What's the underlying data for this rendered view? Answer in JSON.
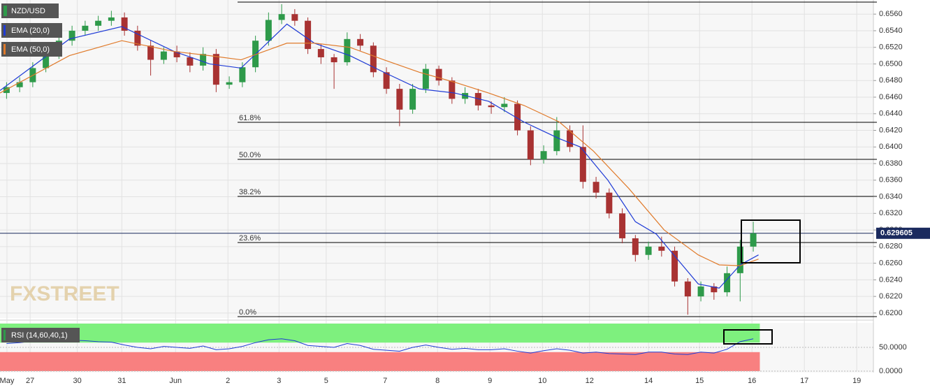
{
  "chart_data": [
    {
      "type": "candlestick",
      "title": "NZD/USD",
      "watermark": "FXSTREET",
      "up_color": "#2e9a4a",
      "down_color": "#a83232",
      "open": [
        0.6465,
        0.6472,
        0.6478,
        0.6495,
        0.6512,
        0.6528,
        0.654,
        0.6546,
        0.6552,
        0.6556,
        0.654,
        0.6522,
        0.6505,
        0.6515,
        0.6508,
        0.6498,
        0.6512,
        0.6475,
        0.6478,
        0.6496,
        0.6528,
        0.6553,
        0.656,
        0.6552,
        0.6518,
        0.6508,
        0.6502,
        0.653,
        0.6522,
        0.649,
        0.647,
        0.6445,
        0.647,
        0.6494,
        0.648,
        0.6458,
        0.6465,
        0.645,
        0.6448,
        0.6452,
        0.642,
        0.6385,
        0.6395,
        0.642,
        0.64,
        0.6358,
        0.6345,
        0.632,
        0.629,
        0.627,
        0.628,
        0.6275,
        0.6238,
        0.622,
        0.6232,
        0.6225,
        0.6248,
        0.628
      ],
      "high": [
        0.6478,
        0.6484,
        0.6502,
        0.6518,
        0.6534,
        0.6546,
        0.6552,
        0.6558,
        0.6564,
        0.6562,
        0.6546,
        0.6528,
        0.652,
        0.6522,
        0.6514,
        0.652,
        0.6518,
        0.6485,
        0.6502,
        0.6534,
        0.6562,
        0.6572,
        0.6566,
        0.6556,
        0.6524,
        0.6512,
        0.6538,
        0.6536,
        0.6526,
        0.6496,
        0.6476,
        0.6476,
        0.65,
        0.6498,
        0.6484,
        0.6472,
        0.647,
        0.6455,
        0.646,
        0.6456,
        0.6425,
        0.6402,
        0.6436,
        0.6426,
        0.6426,
        0.6364,
        0.635,
        0.6326,
        0.6294,
        0.6286,
        0.6292,
        0.628,
        0.6242,
        0.6238,
        0.6236,
        0.6256,
        0.6288,
        0.631
      ],
      "low": [
        0.6458,
        0.6466,
        0.6472,
        0.649,
        0.6506,
        0.6522,
        0.6534,
        0.654,
        0.6546,
        0.6534,
        0.6516,
        0.6486,
        0.65,
        0.6502,
        0.649,
        0.6492,
        0.6466,
        0.647,
        0.6472,
        0.649,
        0.6522,
        0.6548,
        0.6546,
        0.6512,
        0.65,
        0.647,
        0.6498,
        0.6516,
        0.6484,
        0.6464,
        0.6425,
        0.644,
        0.6465,
        0.6474,
        0.6452,
        0.6452,
        0.6444,
        0.644,
        0.6442,
        0.6414,
        0.6378,
        0.638,
        0.639,
        0.6394,
        0.635,
        0.6338,
        0.6314,
        0.6284,
        0.6262,
        0.6264,
        0.6268,
        0.6232,
        0.6198,
        0.6214,
        0.6216,
        0.622,
        0.6214,
        0.6274
      ],
      "close": [
        0.6472,
        0.6478,
        0.6495,
        0.6512,
        0.6528,
        0.654,
        0.6546,
        0.6552,
        0.6556,
        0.654,
        0.6522,
        0.6505,
        0.6515,
        0.6508,
        0.6498,
        0.6512,
        0.6475,
        0.6478,
        0.6496,
        0.6528,
        0.6553,
        0.656,
        0.6552,
        0.6518,
        0.6508,
        0.6502,
        0.653,
        0.6522,
        0.649,
        0.647,
        0.6445,
        0.647,
        0.6494,
        0.648,
        0.6458,
        0.6465,
        0.645,
        0.6448,
        0.6452,
        0.642,
        0.6385,
        0.6395,
        0.642,
        0.64,
        0.6358,
        0.6345,
        0.632,
        0.629,
        0.627,
        0.628,
        0.6275,
        0.6238,
        0.622,
        0.6232,
        0.6225,
        0.6248,
        0.628,
        0.6296
      ],
      "series": [
        {
          "name": "EMA (20,0)",
          "color": "#1f3bd6",
          "x": [
            0,
            5.3,
            9.3,
            13.3,
            16,
            18.4,
            21.9,
            24,
            26.7,
            29.3,
            32,
            34.7,
            37.3,
            40,
            42.7,
            44.3,
            46.4,
            48.5,
            50.1,
            51.7,
            53.3,
            54.9,
            56.5,
            57.9
          ],
          "values": [
            0.6468,
            0.653,
            0.6545,
            0.6515,
            0.65,
            0.6495,
            0.6548,
            0.6525,
            0.651,
            0.649,
            0.647,
            0.6465,
            0.6455,
            0.643,
            0.641,
            0.64,
            0.636,
            0.631,
            0.6295,
            0.6265,
            0.6235,
            0.623,
            0.6258,
            0.627
          ]
        },
        {
          "name": "EMA (50,0)",
          "color": "#e07a2a",
          "x": [
            0,
            5.3,
            9.3,
            13.3,
            16,
            18.4,
            21.9,
            24,
            26.7,
            29.3,
            32,
            34.7,
            37.3,
            40,
            42.7,
            45.3,
            48,
            50.7,
            53.3,
            54.9,
            56.5,
            57.9
          ],
          "values": [
            0.6465,
            0.651,
            0.6528,
            0.6515,
            0.651,
            0.6505,
            0.6525,
            0.6525,
            0.652,
            0.6505,
            0.649,
            0.6478,
            0.6465,
            0.645,
            0.643,
            0.6395,
            0.635,
            0.63,
            0.627,
            0.6258,
            0.6257,
            0.6265
          ]
        }
      ],
      "levels": [
        {
          "value": 0.65745,
          "label": null
        },
        {
          "value": 0.64297,
          "label": "61.8%"
        },
        {
          "value": 0.63851,
          "label": "50.0%"
        },
        {
          "value": 0.63405,
          "label": "38.2%"
        },
        {
          "value": 0.62849,
          "label": "23.6%"
        },
        {
          "value": 0.61957,
          "label": "0.0%"
        }
      ],
      "last_price": 0.629605,
      "last_price_color": "#1a2a5e",
      "xlim": [
        0,
        66.67
      ],
      "ylim": [
        0.6194,
        0.6577
      ],
      "yticks": [
        {
          "value": 0.62,
          "label": "0.6200"
        },
        {
          "value": 0.622,
          "label": "0.6220"
        },
        {
          "value": 0.624,
          "label": "0.6240"
        },
        {
          "value": 0.626,
          "label": "0.6260"
        },
        {
          "value": 0.628,
          "label": "0.6280"
        },
        {
          "value": 0.63,
          "label": "0.6300"
        },
        {
          "value": 0.632,
          "label": "0.6320"
        },
        {
          "value": 0.634,
          "label": "0.6340"
        },
        {
          "value": 0.636,
          "label": "0.6360"
        },
        {
          "value": 0.638,
          "label": "0.6380"
        },
        {
          "value": 0.64,
          "label": "0.6400"
        },
        {
          "value": 0.642,
          "label": "0.6420"
        },
        {
          "value": 0.644,
          "label": "0.6440"
        },
        {
          "value": 0.646,
          "label": "0.6460"
        },
        {
          "value": 0.648,
          "label": "0.6480"
        },
        {
          "value": 0.65,
          "label": "0.6500"
        },
        {
          "value": 0.652,
          "label": "0.6520"
        },
        {
          "value": 0.654,
          "label": "0.6540"
        },
        {
          "value": 0.656,
          "label": "0.6560"
        }
      ],
      "xticks": [
        {
          "value": 0.53,
          "label": "May"
        },
        {
          "value": 2.3,
          "label": "27"
        },
        {
          "value": 5.9,
          "label": "30"
        },
        {
          "value": 9.3,
          "label": "31"
        },
        {
          "value": 13.4,
          "label": "Jun"
        },
        {
          "value": 17.4,
          "label": "2"
        },
        {
          "value": 21.3,
          "label": "3"
        },
        {
          "value": 24.9,
          "label": "5"
        },
        {
          "value": 29.4,
          "label": "7"
        },
        {
          "value": 33.4,
          "label": "8"
        },
        {
          "value": 37.4,
          "label": "9"
        },
        {
          "value": 41.4,
          "label": "10"
        },
        {
          "value": 45,
          "label": "12"
        },
        {
          "value": 49.5,
          "label": "14"
        },
        {
          "value": 53.4,
          "label": "15"
        },
        {
          "value": 57.4,
          "label": "16"
        },
        {
          "value": 61.4,
          "label": "17"
        },
        {
          "value": 65.4,
          "label": "19"
        }
      ],
      "grid": true
    },
    {
      "type": "line",
      "title": "RSI (14,60,40,1)",
      "series": [
        {
          "color": "#1f3bd6",
          "values": [
            58,
            60,
            63,
            66,
            66,
            65,
            64,
            62,
            61,
            55,
            50,
            47,
            52,
            50,
            48,
            53,
            45,
            47,
            52,
            60,
            66,
            68,
            64,
            54,
            52,
            50,
            58,
            54,
            46,
            44,
            42,
            50,
            55,
            50,
            46,
            48,
            45,
            45,
            47,
            42,
            38,
            43,
            47,
            44,
            38,
            40,
            37,
            36,
            35,
            40,
            40,
            36,
            35,
            40,
            38,
            46,
            62,
            68
          ]
        }
      ],
      "upper_band": 60,
      "lower_band": 40,
      "upper_color": "#7ef07e",
      "lower_color": "#f88080",
      "ylim": [
        0,
        100
      ],
      "yticks": [
        {
          "value": 50,
          "label": "50.0000"
        },
        {
          "value": 0,
          "label": "0.0000"
        }
      ]
    }
  ]
}
